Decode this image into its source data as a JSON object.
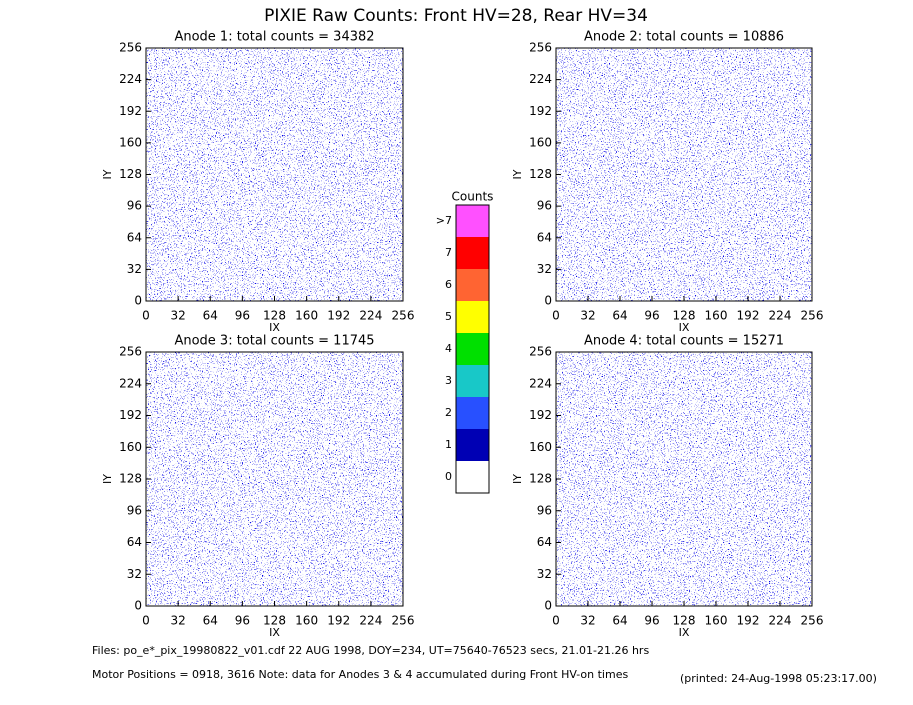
{
  "title": "PIXIE Raw Counts:  Front HV=28, Rear HV=34",
  "chart_data": [
    {
      "type": "image",
      "title": "Anode 1: total counts = 34382",
      "x_label": "IX",
      "y_label": "IY",
      "xlim": [
        0,
        256
      ],
      "ylim": [
        0,
        256
      ],
      "xticks": [
        0,
        32,
        64,
        96,
        128,
        160,
        192,
        224,
        256
      ],
      "yticks": [
        0,
        32,
        64,
        96,
        128,
        160,
        192,
        224,
        256
      ]
    },
    {
      "type": "image",
      "title": "Anode 2: total counts = 10886",
      "x_label": "IX",
      "y_label": "IY",
      "xlim": [
        0,
        256
      ],
      "ylim": [
        0,
        256
      ],
      "xticks": [
        0,
        32,
        64,
        96,
        128,
        160,
        192,
        224,
        256
      ],
      "yticks": [
        0,
        32,
        64,
        96,
        128,
        160,
        192,
        224,
        256
      ]
    },
    {
      "type": "image",
      "title": "Anode 3: total counts = 11745",
      "x_label": "IX",
      "y_label": "IY",
      "xlim": [
        0,
        256
      ],
      "ylim": [
        0,
        256
      ],
      "xticks": [
        0,
        32,
        64,
        96,
        128,
        160,
        192,
        224,
        256
      ],
      "yticks": [
        0,
        32,
        64,
        96,
        128,
        160,
        192,
        224,
        256
      ]
    },
    {
      "type": "image",
      "title": "Anode 4: total counts = 15271",
      "x_label": "IX",
      "y_label": "IY",
      "xlim": [
        0,
        256
      ],
      "ylim": [
        0,
        256
      ],
      "xticks": [
        0,
        32,
        64,
        96,
        128,
        160,
        192,
        224,
        256
      ],
      "yticks": [
        0,
        32,
        64,
        96,
        128,
        160,
        192,
        224,
        256
      ]
    }
  ],
  "colorbar": {
    "title": "Counts",
    "labels": [
      "0",
      "1",
      "2",
      "3",
      "4",
      "5",
      "6",
      "7",
      ">7"
    ],
    "colors": [
      "#ffffff",
      "#0000b4",
      "#2850ff",
      "#18c8c8",
      "#00e000",
      "#ffff00",
      "#ff6432",
      "#ff0000",
      "#ff50ff"
    ]
  },
  "footer": {
    "files": "Files: po_e*_pix_19980822_v01.cdf    22 AUG 1998, DOY=234, UT=75640-76523 secs, 21.01-21.26 hrs",
    "motor": "Motor Positions = 0918, 3616    Note: data for Anodes 3 & 4 accumulated during Front HV-on times",
    "printed": "(printed: 24-Aug-1998 05:23:17.00)"
  }
}
